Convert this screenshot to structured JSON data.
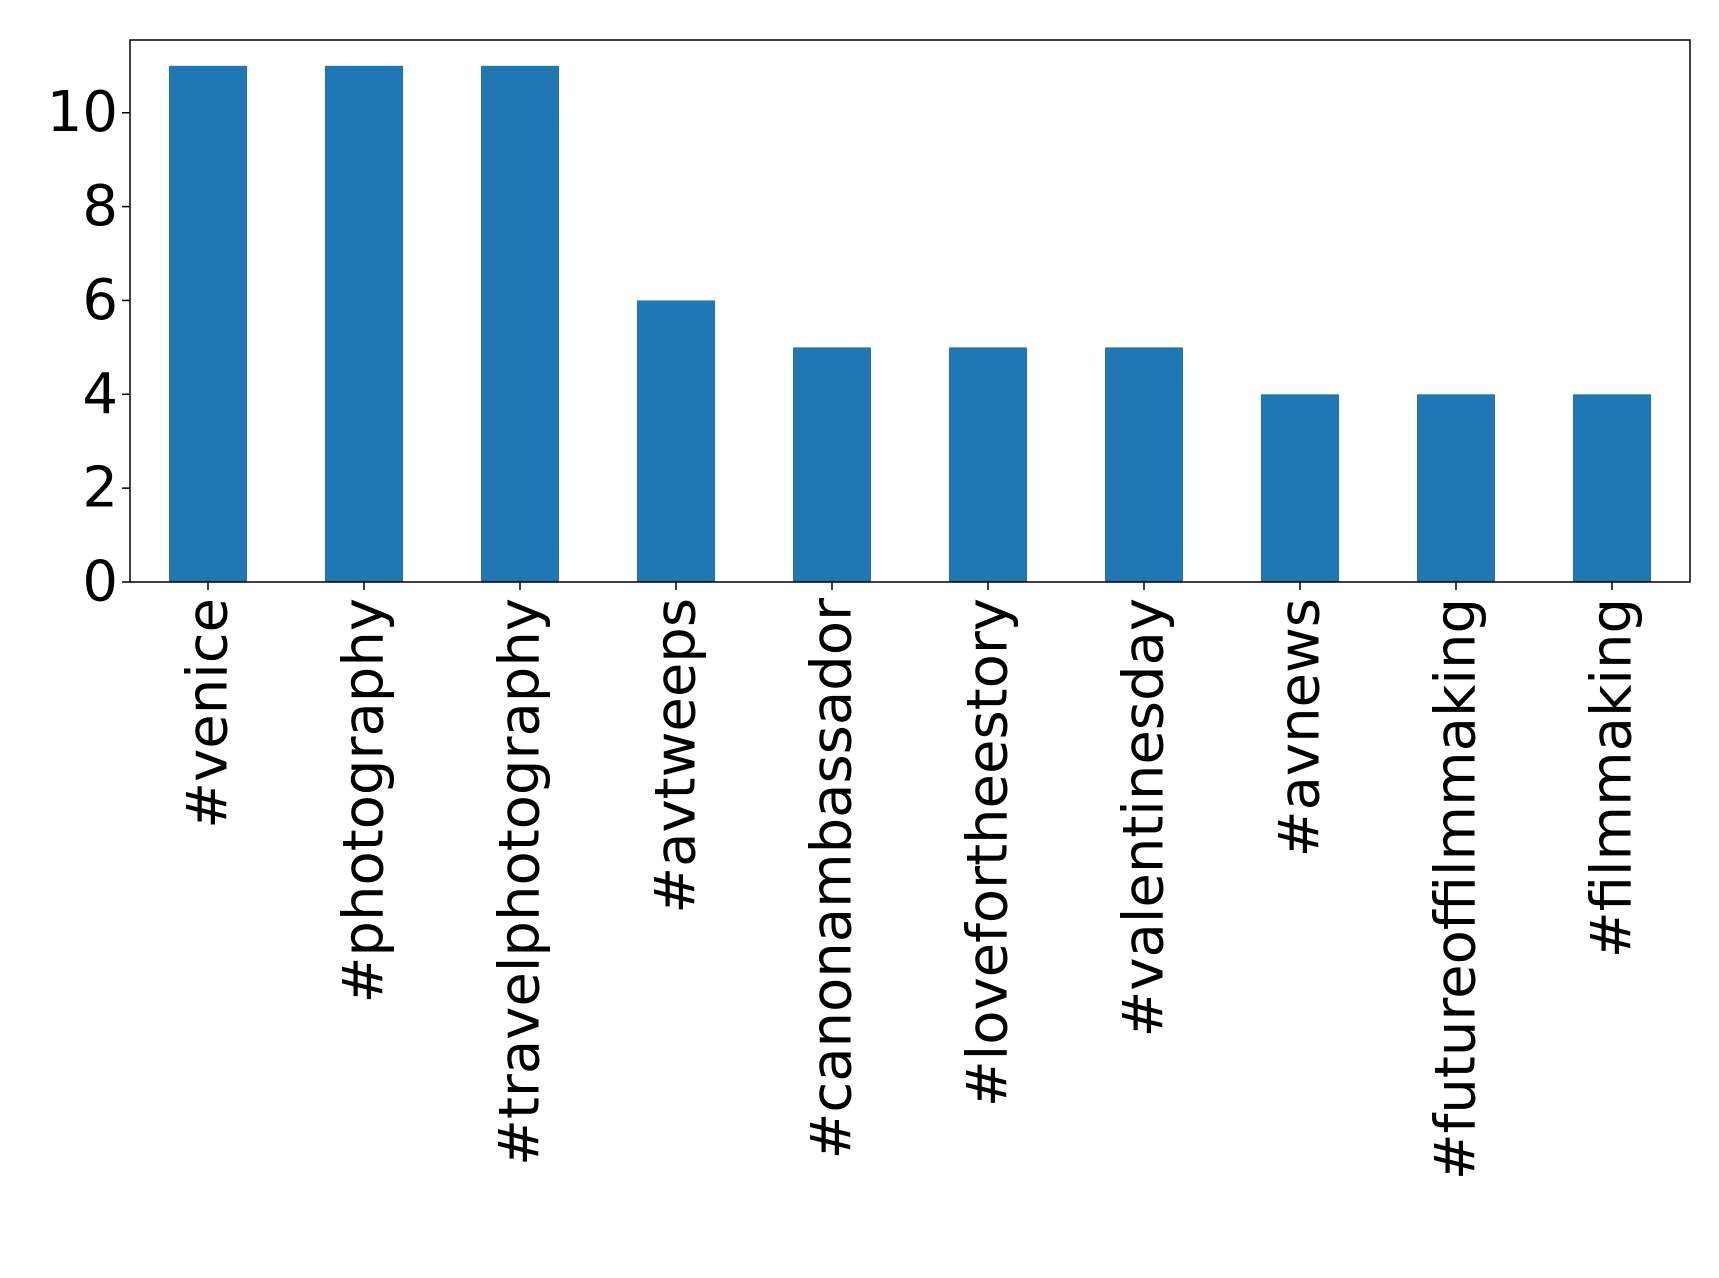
{
  "chart_data": {
    "type": "bar",
    "categories": [
      "#venice",
      "#photography",
      "#travelphotography",
      "#avtweeps",
      "#canonambassador",
      "#lovefortheestory",
      "#valentinesday",
      "#avnews",
      "#futureoffilmmaking",
      "#filmmaking"
    ],
    "values": [
      11,
      11,
      11,
      6,
      5,
      5,
      5,
      4,
      4,
      4
    ],
    "ylim": [
      0,
      11.55
    ],
    "yticks": [
      0,
      2,
      4,
      6,
      8,
      10
    ],
    "title": "",
    "xlabel": "",
    "ylabel": "",
    "grid": false,
    "legend": "none",
    "bar_color": "#1f77b4"
  }
}
